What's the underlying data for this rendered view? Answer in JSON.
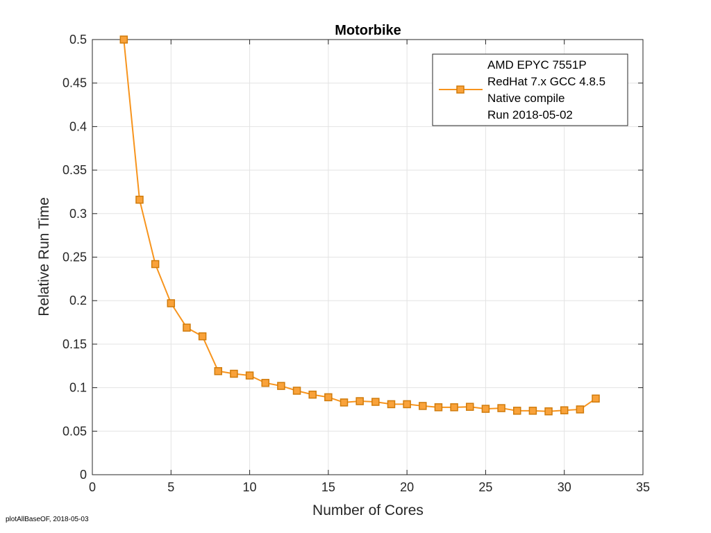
{
  "chart_data": {
    "type": "line",
    "title": "Motorbike",
    "xlabel": "Number of Cores",
    "ylabel": "Relative Run Time",
    "xlim": [
      0,
      35
    ],
    "ylim": [
      0,
      0.5
    ],
    "xticks": [
      0,
      5,
      10,
      15,
      20,
      25,
      30,
      35
    ],
    "xtick_labels": [
      "0",
      "5",
      "10",
      "15",
      "20",
      "25",
      "30",
      "35"
    ],
    "yticks": [
      0,
      0.05,
      0.1,
      0.15,
      0.2,
      0.25,
      0.3,
      0.35,
      0.4,
      0.45,
      0.5
    ],
    "ytick_labels": [
      "0",
      "0.05",
      "0.1",
      "0.15",
      "0.2",
      "0.25",
      "0.3",
      "0.35",
      "0.4",
      "0.45",
      "0.5"
    ],
    "grid": true,
    "legend_position": "top-right",
    "series": [
      {
        "name": "AMD EPYC 7551P",
        "legend_lines": [
          "AMD EPYC 7551P",
          "RedHat 7.x GCC 4.8.5",
          "Native compile",
          "Run 2018-05-02"
        ],
        "color": "#f7941d",
        "marker_fill": "#f9a23a",
        "marker_edge": "#d07b0b",
        "marker": "square",
        "x": [
          2,
          3,
          4,
          5,
          6,
          7,
          8,
          9,
          10,
          11,
          12,
          13,
          14,
          15,
          16,
          17,
          18,
          19,
          20,
          21,
          22,
          23,
          24,
          25,
          26,
          27,
          28,
          29,
          30,
          31,
          32
        ],
        "y": [
          0.5,
          0.316,
          0.242,
          0.197,
          0.169,
          0.159,
          0.119,
          0.116,
          0.114,
          0.1055,
          0.102,
          0.0965,
          0.092,
          0.089,
          0.083,
          0.0845,
          0.0837,
          0.081,
          0.081,
          0.079,
          0.0775,
          0.0775,
          0.078,
          0.0757,
          0.0765,
          0.0735,
          0.0735,
          0.0728,
          0.074,
          0.075,
          0.0875
        ]
      }
    ]
  },
  "footer": "plotAllBaseOF, 2018-05-03"
}
